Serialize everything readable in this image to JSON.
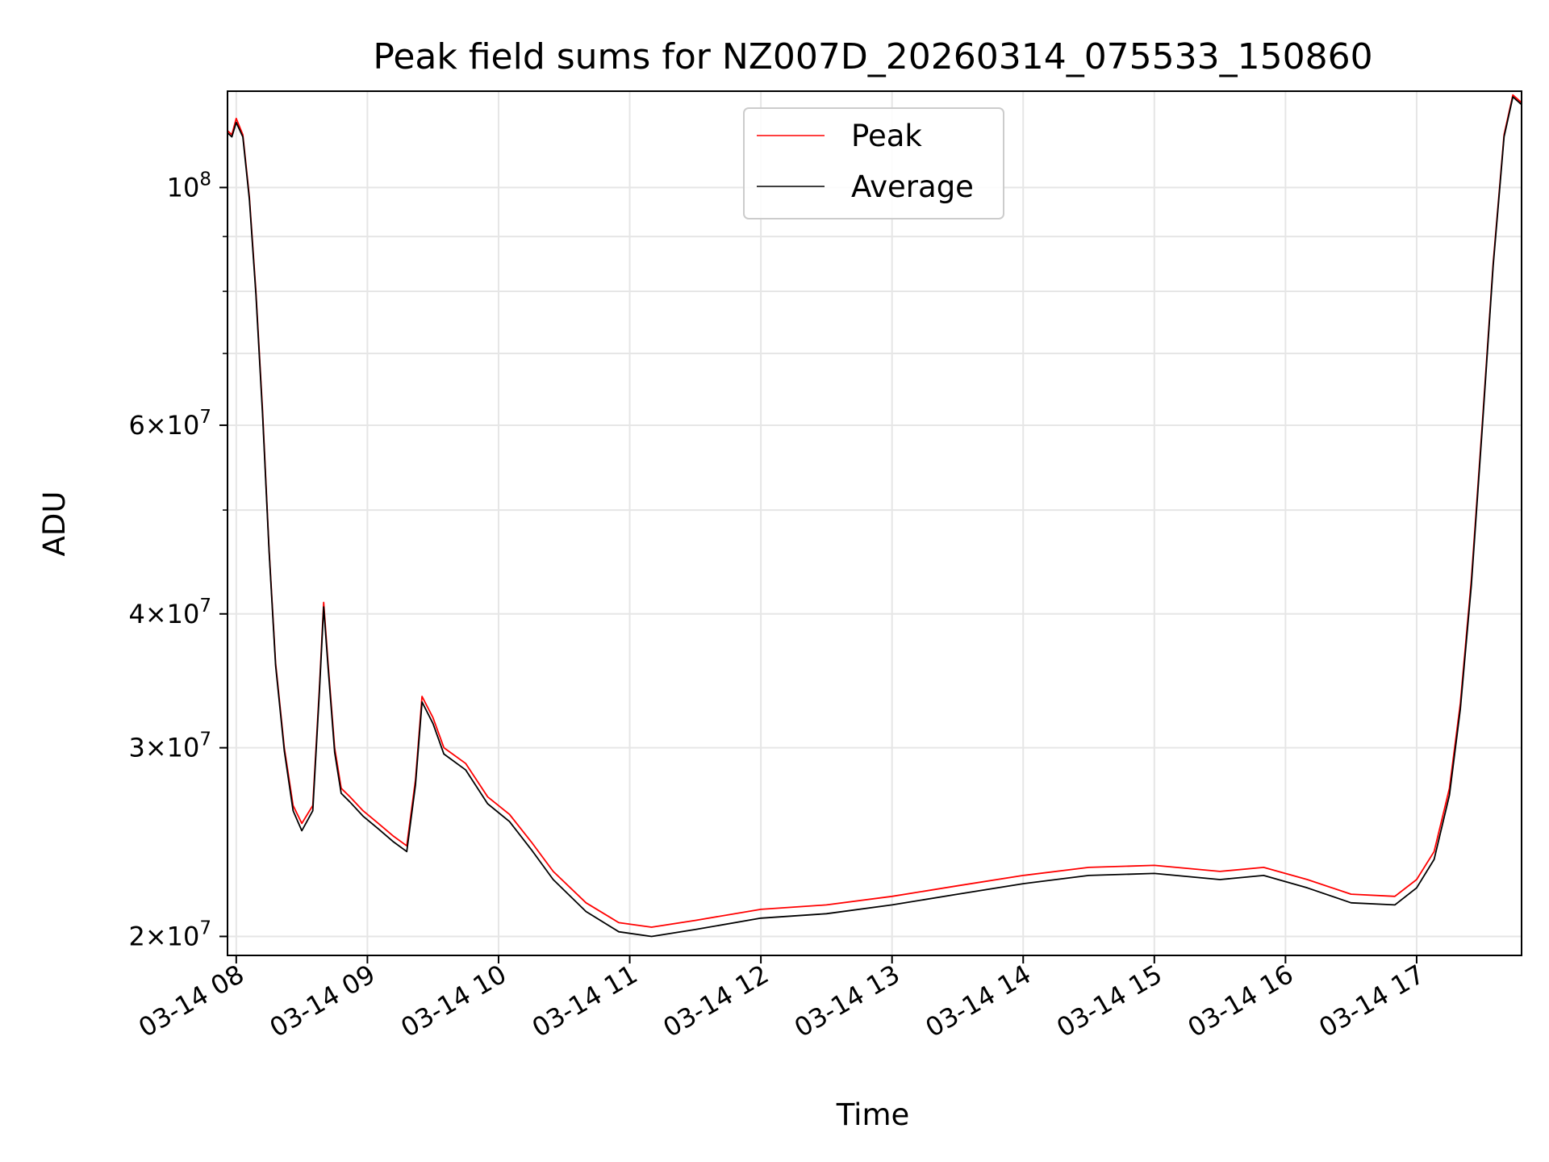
{
  "chart_data": {
    "type": "line",
    "title": "Peak field sums for NZ007D_20260314_075533_150860",
    "xlabel": "Time",
    "ylabel": "ADU",
    "x_range": [
      "2026-03-14 07:56",
      "2026-03-14 17:48"
    ],
    "y_scale": "log",
    "ylim": [
      19200000,
      123000000
    ],
    "grid": true,
    "legend_position": "upper center",
    "x_ticks": [
      "03-14 08",
      "03-14 09",
      "03-14 10",
      "03-14 11",
      "03-14 12",
      "03-14 13",
      "03-14 14",
      "03-14 15",
      "03-14 16",
      "03-14 17"
    ],
    "x_tick_times": [
      "2026-03-14 08:00",
      "2026-03-14 09:00",
      "2026-03-14 10:00",
      "2026-03-14 11:00",
      "2026-03-14 12:00",
      "2026-03-14 13:00",
      "2026-03-14 14:00",
      "2026-03-14 15:00",
      "2026-03-14 16:00",
      "2026-03-14 17:00"
    ],
    "y_ticks": [
      {
        "value": 100000000,
        "mantissa": "",
        "exponent": "8"
      },
      {
        "value": 60000000,
        "mantissa": "6",
        "exponent": "7"
      },
      {
        "value": 40000000,
        "mantissa": "4",
        "exponent": "7"
      },
      {
        "value": 30000000,
        "mantissa": "3",
        "exponent": "7"
      },
      {
        "value": 20000000,
        "mantissa": "2",
        "exponent": "7"
      }
    ],
    "y_minor_ticks": [
      50000000,
      70000000,
      80000000,
      90000000
    ],
    "series": [
      {
        "name": "Peak",
        "color": "#ff0000",
        "x": [
          "2026-03-14 07:56",
          "2026-03-14 07:58",
          "2026-03-14 08:00",
          "2026-03-14 08:03",
          "2026-03-14 08:06",
          "2026-03-14 08:09",
          "2026-03-14 08:12",
          "2026-03-14 08:15",
          "2026-03-14 08:18",
          "2026-03-14 08:22",
          "2026-03-14 08:26",
          "2026-03-14 08:30",
          "2026-03-14 08:35",
          "2026-03-14 08:38",
          "2026-03-14 08:40",
          "2026-03-14 08:42",
          "2026-03-14 08:45",
          "2026-03-14 08:48",
          "2026-03-14 08:52",
          "2026-03-14 08:58",
          "2026-03-14 09:05",
          "2026-03-14 09:12",
          "2026-03-14 09:18",
          "2026-03-14 09:22",
          "2026-03-14 09:25",
          "2026-03-14 09:30",
          "2026-03-14 09:35",
          "2026-03-14 09:45",
          "2026-03-14 09:55",
          "2026-03-14 10:05",
          "2026-03-14 10:15",
          "2026-03-14 10:25",
          "2026-03-14 10:40",
          "2026-03-14 10:55",
          "2026-03-14 11:10",
          "2026-03-14 11:30",
          "2026-03-14 12:00",
          "2026-03-14 12:30",
          "2026-03-14 13:00",
          "2026-03-14 13:30",
          "2026-03-14 14:00",
          "2026-03-14 14:30",
          "2026-03-14 15:00",
          "2026-03-14 15:30",
          "2026-03-14 15:50",
          "2026-03-14 16:10",
          "2026-03-14 16:30",
          "2026-03-14 16:50",
          "2026-03-14 17:00",
          "2026-03-14 17:08",
          "2026-03-14 17:15",
          "2026-03-14 17:20",
          "2026-03-14 17:25",
          "2026-03-14 17:30",
          "2026-03-14 17:35",
          "2026-03-14 17:40",
          "2026-03-14 17:44",
          "2026-03-14 17:48"
        ],
        "y": [
          113000000,
          112000000,
          116000000,
          112000000,
          98000000,
          80000000,
          62000000,
          46000000,
          36000000,
          30000000,
          26500000,
          25500000,
          26500000,
          34000000,
          41000000,
          36000000,
          30000000,
          27500000,
          27000000,
          26200000,
          25500000,
          24800000,
          24300000,
          28000000,
          33500000,
          32000000,
          30000000,
          29000000,
          27000000,
          26000000,
          24500000,
          23000000,
          21500000,
          20600000,
          20400000,
          20700000,
          21200000,
          21400000,
          21800000,
          22300000,
          22800000,
          23200000,
          23300000,
          23000000,
          23200000,
          22600000,
          21900000,
          21800000,
          22600000,
          24000000,
          27500000,
          33000000,
          43000000,
          60000000,
          85000000,
          112000000,
          122000000,
          120000000
        ]
      },
      {
        "name": "Average",
        "color": "#000000",
        "x": [
          "2026-03-14 07:56",
          "2026-03-14 07:58",
          "2026-03-14 08:00",
          "2026-03-14 08:03",
          "2026-03-14 08:06",
          "2026-03-14 08:09",
          "2026-03-14 08:12",
          "2026-03-14 08:15",
          "2026-03-14 08:18",
          "2026-03-14 08:22",
          "2026-03-14 08:26",
          "2026-03-14 08:30",
          "2026-03-14 08:35",
          "2026-03-14 08:38",
          "2026-03-14 08:40",
          "2026-03-14 08:42",
          "2026-03-14 08:45",
          "2026-03-14 08:48",
          "2026-03-14 08:52",
          "2026-03-14 08:58",
          "2026-03-14 09:05",
          "2026-03-14 09:12",
          "2026-03-14 09:18",
          "2026-03-14 09:22",
          "2026-03-14 09:25",
          "2026-03-14 09:30",
          "2026-03-14 09:35",
          "2026-03-14 09:45",
          "2026-03-14 09:55",
          "2026-03-14 10:05",
          "2026-03-14 10:15",
          "2026-03-14 10:25",
          "2026-03-14 10:40",
          "2026-03-14 10:55",
          "2026-03-14 11:10",
          "2026-03-14 11:30",
          "2026-03-14 12:00",
          "2026-03-14 12:30",
          "2026-03-14 13:00",
          "2026-03-14 13:30",
          "2026-03-14 14:00",
          "2026-03-14 14:30",
          "2026-03-14 15:00",
          "2026-03-14 15:30",
          "2026-03-14 15:50",
          "2026-03-14 16:10",
          "2026-03-14 16:30",
          "2026-03-14 16:50",
          "2026-03-14 17:00",
          "2026-03-14 17:08",
          "2026-03-14 17:15",
          "2026-03-14 17:20",
          "2026-03-14 17:25",
          "2026-03-14 17:30",
          "2026-03-14 17:35",
          "2026-03-14 17:40",
          "2026-03-14 17:44",
          "2026-03-14 17:48"
        ],
        "y": [
          112500000,
          111500000,
          115000000,
          111500000,
          97500000,
          79500000,
          61500000,
          45800000,
          35800000,
          29800000,
          26200000,
          25100000,
          26200000,
          33700000,
          40600000,
          35700000,
          29700000,
          27200000,
          26700000,
          25900000,
          25200000,
          24500000,
          24000000,
          27700000,
          33100000,
          31600000,
          29600000,
          28600000,
          26600000,
          25600000,
          24100000,
          22600000,
          21100000,
          20200000,
          20000000,
          20300000,
          20800000,
          21000000,
          21400000,
          21900000,
          22400000,
          22800000,
          22900000,
          22600000,
          22800000,
          22200000,
          21500000,
          21400000,
          22200000,
          23600000,
          27100000,
          32600000,
          42500000,
          59500000,
          84500000,
          111500000,
          121500000,
          119500000
        ]
      }
    ]
  }
}
